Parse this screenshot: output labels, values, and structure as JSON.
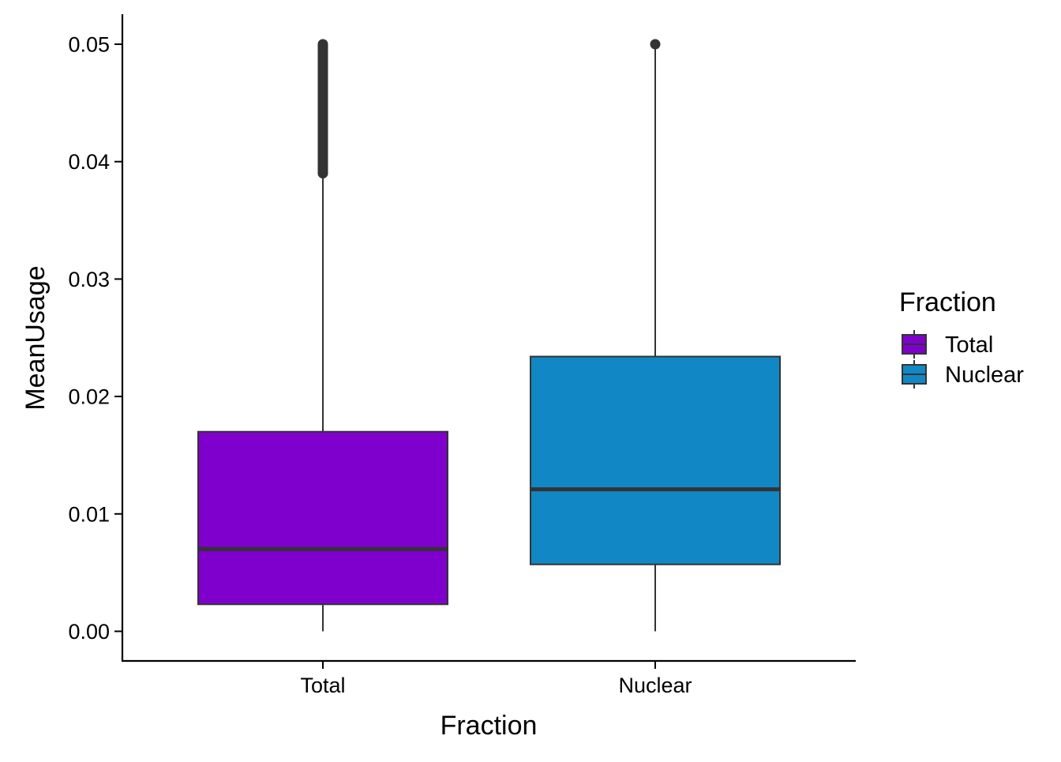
{
  "chart_data": {
    "type": "boxplot",
    "xlabel": "Fraction",
    "ylabel": "MeanUsage",
    "categories": [
      "Total",
      "Nuclear"
    ],
    "ylim": [
      -0.0025,
      0.0525
    ],
    "yticks": [
      0.0,
      0.01,
      0.02,
      0.03,
      0.04,
      0.05
    ],
    "ytick_labels": [
      "0.00",
      "0.01",
      "0.02",
      "0.03",
      "0.04",
      "0.05"
    ],
    "boxes": [
      {
        "name": "Total",
        "color": "#7F00CC",
        "whisker_low": 0.0,
        "q1": 0.0023,
        "median": 0.007,
        "q3": 0.017,
        "whisker_high": 0.039,
        "outliers_range": [
          0.039,
          0.05
        ]
      },
      {
        "name": "Nuclear",
        "color": "#1188C5",
        "whisker_low": 0.0,
        "q1": 0.0057,
        "median": 0.0121,
        "q3": 0.0234,
        "whisker_high": 0.05,
        "outliers": [
          0.05
        ]
      }
    ],
    "grid": false,
    "legend": {
      "title": "Fraction",
      "position": "right",
      "entries": [
        "Total",
        "Nuclear"
      ]
    }
  }
}
